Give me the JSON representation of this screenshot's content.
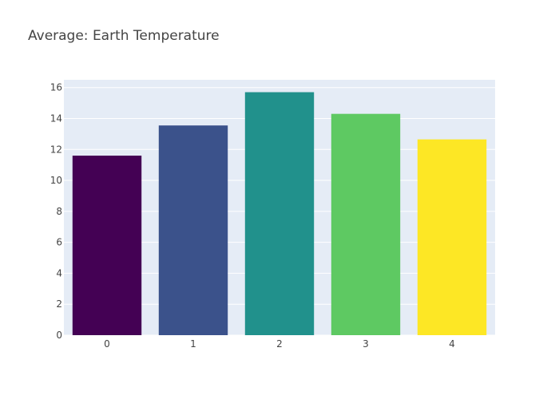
{
  "chart_data": {
    "type": "bar",
    "title": "Average: Earth Temperature",
    "xlabel": "",
    "ylabel": "",
    "categories": [
      "0",
      "1",
      "2",
      "3",
      "4"
    ],
    "values": [
      11.6,
      13.55,
      15.7,
      14.3,
      12.65
    ],
    "bar_colors": [
      "#440154",
      "#3b528b",
      "#21918c",
      "#5ec962",
      "#fde725"
    ],
    "ylim": [
      0,
      16.5
    ],
    "yticks": [
      0,
      2,
      4,
      6,
      8,
      10,
      12,
      14,
      16
    ],
    "ytick_labels": [
      "0",
      "2",
      "4",
      "6",
      "8",
      "10",
      "12",
      "14",
      "16"
    ],
    "grid": true,
    "legend": "none",
    "plot_background": "#e5ecf6",
    "gridline_color": "#ffffff"
  }
}
